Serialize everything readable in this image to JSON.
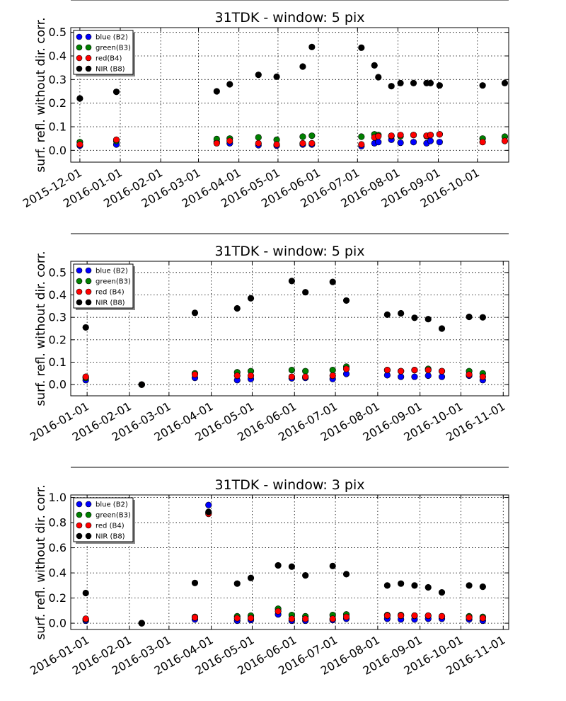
{
  "chart_data": [
    {
      "type": "scatter",
      "title": "31TDK - window: 5 pix",
      "ylabel": "surf. refl. without dir. corr.",
      "xlim": [
        "2015-11-24",
        "2016-10-25"
      ],
      "ylim": [
        -0.05,
        0.52
      ],
      "yticks": [
        "0.0",
        "0.1",
        "0.2",
        "0.3",
        "0.4",
        "0.5"
      ],
      "xticks": [
        "2015-12-01",
        "2016-01-01",
        "2016-02-01",
        "2016-03-01",
        "2016-04-01",
        "2016-05-01",
        "2016-06-01",
        "2016-07-01",
        "2016-08-01",
        "2016-09-01",
        "2016-10-01"
      ],
      "grid": true,
      "legend_position": "top-left",
      "series": [
        {
          "name": "blue (B2)",
          "color": "#0000ff",
          "x": [
            "2015-12-01",
            "2015-12-29",
            "2016-03-15",
            "2016-03-25",
            "2016-04-16",
            "2016-04-30",
            "2016-05-20",
            "2016-05-27",
            "2016-07-04",
            "2016-07-14",
            "2016-07-17",
            "2016-07-27",
            "2016-08-03",
            "2016-08-13",
            "2016-08-23",
            "2016-08-26",
            "2016-09-02"
          ],
          "y": [
            0.02,
            0.025,
            0.035,
            0.03,
            0.022,
            0.02,
            0.025,
            0.025,
            0.018,
            0.03,
            0.035,
            0.045,
            0.032,
            0.035,
            0.03,
            0.04,
            0.035
          ]
        },
        {
          "name": "green(B3)",
          "color": "#008000",
          "x": [
            "2015-12-01",
            "2015-12-29",
            "2016-03-15",
            "2016-03-25",
            "2016-04-16",
            "2016-04-30",
            "2016-05-20",
            "2016-05-27",
            "2016-07-04",
            "2016-07-14",
            "2016-07-17",
            "2016-07-27",
            "2016-08-03",
            "2016-08-13",
            "2016-08-23",
            "2016-08-26",
            "2016-09-02",
            "2016-10-05",
            "2016-10-22"
          ],
          "y": [
            0.035,
            0.04,
            0.048,
            0.05,
            0.055,
            0.045,
            0.058,
            0.062,
            0.058,
            0.068,
            0.065,
            0.06,
            0.06,
            0.065,
            0.06,
            0.065,
            0.068,
            0.05,
            0.058
          ]
        },
        {
          "name": "red(B4)",
          "color": "#ff0000",
          "x": [
            "2015-12-01",
            "2015-12-29",
            "2016-03-15",
            "2016-03-25",
            "2016-04-16",
            "2016-04-30",
            "2016-05-20",
            "2016-05-27",
            "2016-07-04",
            "2016-07-14",
            "2016-07-17",
            "2016-07-27",
            "2016-08-03",
            "2016-08-13",
            "2016-08-23",
            "2016-08-26",
            "2016-09-02",
            "2016-10-05",
            "2016-10-22"
          ],
          "y": [
            0.025,
            0.045,
            0.03,
            0.04,
            0.03,
            0.025,
            0.03,
            0.03,
            0.025,
            0.055,
            0.06,
            0.062,
            0.065,
            0.065,
            0.062,
            0.065,
            0.068,
            0.035,
            0.04
          ]
        },
        {
          "name": "NIR  (B8)",
          "color": "#000000",
          "x": [
            "2015-12-01",
            "2015-12-29",
            "2016-03-15",
            "2016-03-25",
            "2016-04-16",
            "2016-04-30",
            "2016-05-20",
            "2016-05-27",
            "2016-07-04",
            "2016-07-14",
            "2016-07-17",
            "2016-07-27",
            "2016-08-03",
            "2016-08-13",
            "2016-08-23",
            "2016-08-26",
            "2016-09-02",
            "2016-10-05",
            "2016-10-22"
          ],
          "y": [
            0.22,
            0.248,
            0.25,
            0.28,
            0.32,
            0.312,
            0.355,
            0.438,
            0.435,
            0.36,
            0.31,
            0.272,
            0.285,
            0.285,
            0.285,
            0.285,
            0.275,
            0.275,
            0.285
          ]
        }
      ]
    },
    {
      "type": "scatter",
      "title": "31TDK - window: 5 pix",
      "ylabel": "surf. refl. without dir. corr.",
      "xlim": [
        "2015-12-20",
        "2016-11-05"
      ],
      "ylim": [
        -0.05,
        0.55
      ],
      "yticks": [
        "0.0",
        "0.1",
        "0.2",
        "0.3",
        "0.4",
        "0.5"
      ],
      "xticks": [
        "2016-01-01",
        "2016-02-01",
        "2016-03-01",
        "2016-04-01",
        "2016-05-01",
        "2016-06-01",
        "2016-07-01",
        "2016-08-01",
        "2016-09-01",
        "2016-10-01",
        "2016-11-01"
      ],
      "grid": true,
      "legend_position": "top-left",
      "series": [
        {
          "name": "blue (B2)",
          "color": "#0000ff",
          "x": [
            "2015-12-31",
            "2016-02-10",
            "2016-03-20",
            "2016-04-20",
            "2016-04-30",
            "2016-05-30",
            "2016-06-09",
            "2016-06-29",
            "2016-07-09",
            "2016-08-08",
            "2016-08-18",
            "2016-08-28",
            "2016-09-07",
            "2016-09-17",
            "2016-10-07",
            "2016-10-17"
          ],
          "y": [
            0.02,
            0.0,
            0.03,
            0.02,
            0.025,
            0.028,
            0.03,
            0.025,
            0.048,
            0.042,
            0.035,
            0.035,
            0.04,
            0.035,
            0.04,
            0.02
          ]
        },
        {
          "name": "green(B3)",
          "color": "#008000",
          "x": [
            "2015-12-31",
            "2016-02-10",
            "2016-03-20",
            "2016-04-20",
            "2016-04-30",
            "2016-05-30",
            "2016-06-09",
            "2016-06-29",
            "2016-07-09",
            "2016-08-08",
            "2016-08-18",
            "2016-08-28",
            "2016-09-07",
            "2016-09-17",
            "2016-10-07",
            "2016-10-17"
          ],
          "y": [
            0.03,
            0.0,
            0.05,
            0.055,
            0.06,
            0.065,
            0.06,
            0.065,
            0.08,
            0.065,
            0.06,
            0.065,
            0.07,
            0.06,
            0.06,
            0.05
          ]
        },
        {
          "name": "red  (B4)",
          "color": "#ff0000",
          "x": [
            "2015-12-31",
            "2016-02-10",
            "2016-03-20",
            "2016-04-20",
            "2016-04-30",
            "2016-05-30",
            "2016-06-09",
            "2016-06-29",
            "2016-07-09",
            "2016-08-08",
            "2016-08-18",
            "2016-08-28",
            "2016-09-07",
            "2016-09-17",
            "2016-10-07",
            "2016-10-17"
          ],
          "y": [
            0.035,
            0.0,
            0.045,
            0.04,
            0.04,
            0.035,
            0.035,
            0.04,
            0.07,
            0.065,
            0.06,
            0.065,
            0.065,
            0.06,
            0.045,
            0.035
          ]
        },
        {
          "name": "NIR  (B8)",
          "color": "#000000",
          "x": [
            "2015-12-31",
            "2016-02-10",
            "2016-03-20",
            "2016-04-20",
            "2016-04-30",
            "2016-05-30",
            "2016-06-09",
            "2016-06-29",
            "2016-07-09",
            "2016-08-08",
            "2016-08-18",
            "2016-08-28",
            "2016-09-07",
            "2016-09-17",
            "2016-10-07",
            "2016-10-17"
          ],
          "y": [
            0.255,
            0.0,
            0.32,
            0.34,
            0.385,
            0.462,
            0.412,
            0.458,
            0.375,
            0.312,
            0.318,
            0.298,
            0.292,
            0.25,
            0.302,
            0.3
          ]
        }
      ]
    },
    {
      "type": "scatter",
      "title": "31TDK - window: 3 pix",
      "ylabel": "surf. refl. without dir. corr.",
      "xlim": [
        "2015-12-20",
        "2016-11-05"
      ],
      "ylim": [
        -0.05,
        1.02
      ],
      "yticks": [
        "0.0",
        "0.2",
        "0.4",
        "0.6",
        "0.8",
        "1.0"
      ],
      "xticks": [
        "2016-01-01",
        "2016-02-01",
        "2016-03-01",
        "2016-04-01",
        "2016-05-01",
        "2016-06-01",
        "2016-07-01",
        "2016-08-01",
        "2016-09-01",
        "2016-10-01",
        "2016-11-01"
      ],
      "grid": true,
      "legend_position": "top-left",
      "series": [
        {
          "name": "blue (B2)",
          "color": "#0000ff",
          "x": [
            "2015-12-31",
            "2016-02-10",
            "2016-03-20",
            "2016-03-30",
            "2016-04-20",
            "2016-04-30",
            "2016-05-20",
            "2016-05-30",
            "2016-06-09",
            "2016-06-29",
            "2016-07-09",
            "2016-08-08",
            "2016-08-18",
            "2016-08-28",
            "2016-09-07",
            "2016-09-17",
            "2016-10-07",
            "2016-10-17"
          ],
          "y": [
            0.02,
            0.0,
            0.03,
            0.94,
            0.02,
            0.025,
            0.07,
            0.02,
            0.02,
            0.025,
            0.035,
            0.035,
            0.03,
            0.03,
            0.035,
            0.035,
            0.03,
            0.02
          ]
        },
        {
          "name": "green(B3)",
          "color": "#008000",
          "x": [
            "2015-12-31",
            "2016-02-10",
            "2016-03-20",
            "2016-03-30",
            "2016-04-20",
            "2016-04-30",
            "2016-05-20",
            "2016-05-30",
            "2016-06-09",
            "2016-06-29",
            "2016-07-09",
            "2016-08-08",
            "2016-08-18",
            "2016-08-28",
            "2016-09-07",
            "2016-09-17",
            "2016-10-07",
            "2016-10-17"
          ],
          "y": [
            0.03,
            0.0,
            0.05,
            0.88,
            0.055,
            0.06,
            0.115,
            0.065,
            0.055,
            0.065,
            0.07,
            0.065,
            0.065,
            0.06,
            0.06,
            0.055,
            0.055,
            0.05
          ]
        },
        {
          "name": "red  (B4)",
          "color": "#ff0000",
          "x": [
            "2015-12-31",
            "2016-02-10",
            "2016-03-20",
            "2016-03-30",
            "2016-04-20",
            "2016-04-30",
            "2016-05-20",
            "2016-05-30",
            "2016-06-09",
            "2016-06-29",
            "2016-07-09",
            "2016-08-08",
            "2016-08-18",
            "2016-08-28",
            "2016-09-07",
            "2016-09-17",
            "2016-10-07",
            "2016-10-17"
          ],
          "y": [
            0.035,
            0.0,
            0.045,
            0.87,
            0.04,
            0.04,
            0.095,
            0.035,
            0.035,
            0.035,
            0.05,
            0.06,
            0.06,
            0.06,
            0.06,
            0.055,
            0.045,
            0.04
          ]
        },
        {
          "name": "NIR  (B8)",
          "color": "#000000",
          "x": [
            "2015-12-31",
            "2016-02-10",
            "2016-03-20",
            "2016-03-30",
            "2016-04-20",
            "2016-04-30",
            "2016-05-20",
            "2016-05-30",
            "2016-06-09",
            "2016-06-29",
            "2016-07-09",
            "2016-08-08",
            "2016-08-18",
            "2016-08-28",
            "2016-09-07",
            "2016-09-17",
            "2016-10-07",
            "2016-10-17"
          ],
          "y": [
            0.24,
            0.0,
            0.32,
            0.885,
            0.315,
            0.36,
            0.46,
            0.45,
            0.38,
            0.455,
            0.39,
            0.3,
            0.315,
            0.3,
            0.285,
            0.245,
            0.3,
            0.29
          ]
        }
      ]
    }
  ]
}
